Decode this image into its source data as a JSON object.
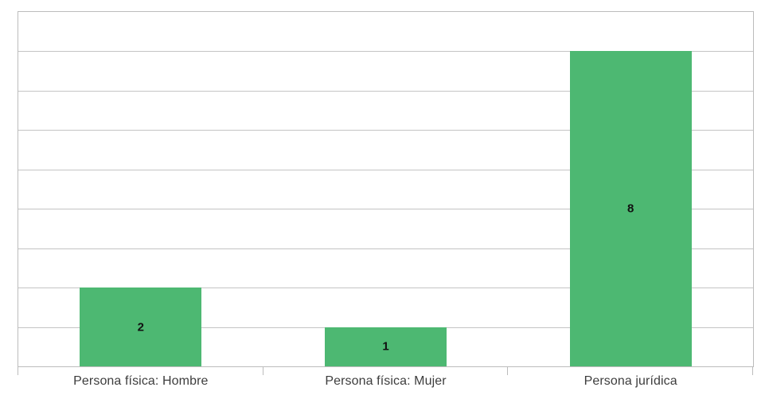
{
  "chart_data": {
    "type": "bar",
    "title": "",
    "xlabel": "",
    "ylabel": "",
    "categories": [
      "Persona física: Hombre",
      "Persona física: Mujer",
      "Persona jurídica"
    ],
    "values": [
      2,
      1,
      8
    ],
    "value_labels": [
      "2",
      "1",
      "8"
    ],
    "ylim": [
      0,
      9
    ],
    "gridline_interval": 1,
    "grid": true,
    "y_tick_labels": [],
    "legend_position": "none",
    "colors": {
      "bar_fill": "#4db872",
      "gridline": "#c4c4c4",
      "axis": "#bcbcbc",
      "value_label": "#111111",
      "category_label": "#3d3d3d",
      "plot_background": "#ffffff",
      "page_background": "#ffffff"
    }
  }
}
